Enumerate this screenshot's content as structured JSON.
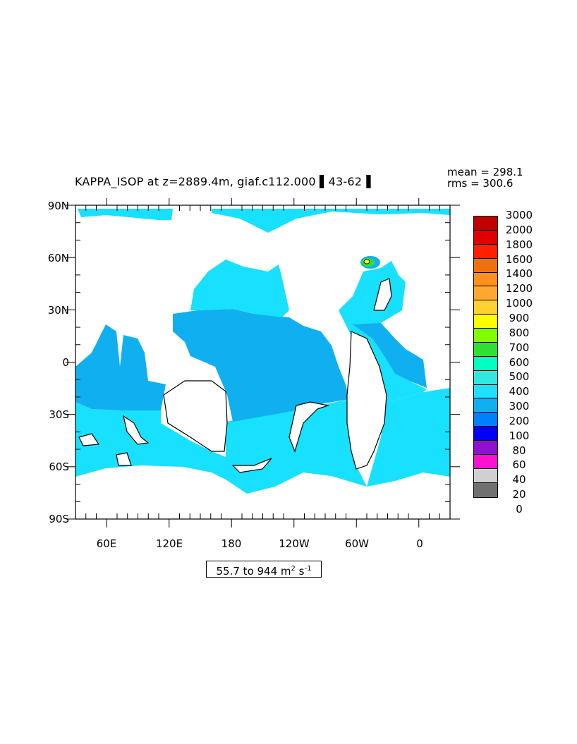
{
  "title": "KAPPA_ISOP at z=2889.4m, giaf.c112.000 ▌43-62▐",
  "stats": {
    "mean": "mean = 298.1",
    "rms": "rms = 300.6"
  },
  "range": {
    "prefix": "55.7 to 944 m",
    "sup1": "2",
    "mid": " s",
    "sup2": "-1"
  },
  "axes": {
    "y_labels": [
      "90N",
      "60N",
      "30N",
      "0",
      "30S",
      "60S",
      "90S"
    ],
    "x_labels": [
      "60E",
      "120E",
      "180",
      "120W",
      "60W",
      "0"
    ]
  },
  "colorbar": {
    "labels": [
      "3000",
      "2000",
      "1800",
      "1600",
      "1400",
      "1200",
      "1000",
      "900",
      "800",
      "700",
      "600",
      "500",
      "400",
      "300",
      "200",
      "100",
      "80",
      "60",
      "40",
      "20",
      "0"
    ],
    "colors": [
      "#c00000",
      "#e00000",
      "#ff2000",
      "#f07010",
      "#ff9020",
      "#ffa830",
      "#ffd030",
      "#ffff00",
      "#80ff00",
      "#30e030",
      "#00ffc0",
      "#30e8e0",
      "#20e0ff",
      "#10b0f0",
      "#0080ff",
      "#0000ff",
      "#9010d0",
      "#ff10d0",
      "#d0d0d0",
      "#707070"
    ]
  },
  "map_colors": {
    "ocean_main": "#18e0ff",
    "ocean_mid": "#10b0f0",
    "ocean_deep": "#0080ff",
    "land": "#ffffff"
  }
}
